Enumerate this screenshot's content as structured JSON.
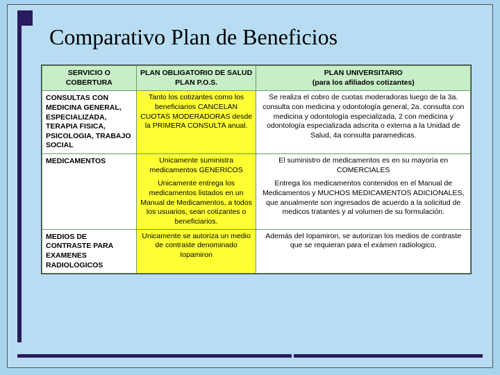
{
  "title": "Comparativo Plan de Beneficios",
  "colors": {
    "page_bg": "#a8d4f0",
    "frame_bg": "#b8ddf2",
    "accent": "#2a1a5e",
    "header_bg": "#c7eec7",
    "highlight_bg": "#ffff33",
    "cell_border": "#6a9a6a"
  },
  "typography": {
    "title_font": "Times New Roman",
    "title_size_pt": 24,
    "body_font": "Arial",
    "body_size_pt": 8
  },
  "table": {
    "columns": [
      {
        "key": "servicio",
        "label": "SERVICIO O COBERTURA",
        "width_pct": 22
      },
      {
        "key": "pos",
        "label_line1": "PLAN OBLIGATORIO DE SALUD",
        "label_line2": "PLAN P.O.S.",
        "width_pct": 28
      },
      {
        "key": "univ",
        "label_line1": "PLAN UNIVERSITARIO",
        "label_line2": "(para los afiliados cotizantes)",
        "width_pct": 50
      }
    ],
    "rows": [
      {
        "label": "CONSULTAS CON MEDICINA GENERAL, ESPECIALIZADA, TERAPIA FISICA, PSICOLOGIA, TRABAJO SOCIAL",
        "pos": "Tanto los cotizantes como los beneficiarios CANCELAN CUOTAS MODERADORAS desde la PRIMERA CONSULTA anual.",
        "univ": "Se realiza el cobro de cuotas moderadoras luego de la 3a. consulta con medicina y odontología general, 2a. consulta con medicina y odontología especializada, 2 con medicina y odontología especializada adscrita o externa a la Unidad de Salud, 4a consulta paramedicas.",
        "pos_bg": "yel",
        "univ_bg": "wht"
      },
      {
        "label": "MEDICAMENTOS",
        "pos_p1": "Unicamente suministra medicamentos GENERICOS",
        "pos_p2": "Unicamente entrega los medicamentos listados en un Manual de Medicamentos, a todos los usuarios, sean cotizantes o beneficiarios.",
        "univ_p1": "El suministro de medicamentos es en su mayoría en COMERCIALES",
        "univ_p2": "Entrega los medicamentos contenidos en el Manual de Medicamentos y MUCHOS MEDICAMENTOS ADICIONALES, que anualmente son ingresados de acuerdo a la solicitud de medicos tratantes y al volumen de su formulación.",
        "pos_bg": "yel",
        "univ_bg": "wht"
      },
      {
        "label": "MEDIOS DE CONTRASTE PARA EXAMENES RADIOLOGICOS",
        "pos": "Unicamente se autoriza un medio de contraste denominado Iopamiron",
        "univ": "Además del Iopamiron, se autorizan los medios de contraste que se requieran para el exámen radiologico.",
        "pos_bg": "yel",
        "univ_bg": "wht"
      }
    ]
  }
}
